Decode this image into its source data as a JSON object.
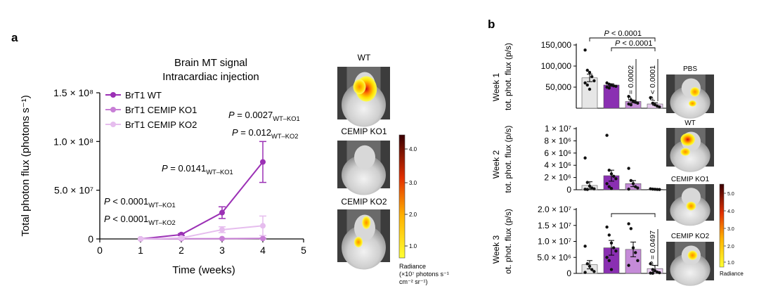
{
  "panel_a_letter": "a",
  "panel_b_letter": "b",
  "chart_data": [
    {
      "type": "line",
      "panel": "a",
      "title_lines": [
        "Brain MT signal",
        "Intracardiac injection"
      ],
      "xlabel": "Time (weeks)",
      "ylabel": "Total photon flux (photons s⁻¹)",
      "xlim": [
        0,
        5
      ],
      "ylim": [
        0,
        150000000
      ],
      "x_ticks": [
        "0",
        "1",
        "2",
        "3",
        "4",
        "5"
      ],
      "y_ticks": [
        {
          "value": 0,
          "label": "0"
        },
        {
          "value": 50000000,
          "label": "5.0 × 10⁷"
        },
        {
          "value": 100000000,
          "label": "1.0 × 10⁸"
        },
        {
          "value": 150000000,
          "label": "1.5 × 10⁸"
        }
      ],
      "legend_position": "top-left",
      "series": [
        {
          "name": "BrT1 WT",
          "color": "#9b30b5",
          "x": [
            1,
            2,
            3,
            4
          ],
          "y": [
            0,
            4500000,
            27000000,
            79000000
          ],
          "err": [
            0,
            1000000,
            6000000,
            21000000
          ]
        },
        {
          "name": "BrT1 CEMIP KO1",
          "color": "#c87fd6",
          "x": [
            1,
            2,
            3,
            4
          ],
          "y": [
            0,
            200000,
            300000,
            500000
          ],
          "err": [
            0,
            100000,
            200000,
            300000
          ]
        },
        {
          "name": "BrT1 CEMIP KO2",
          "color": "#e6bdee",
          "x": [
            1,
            2,
            3,
            4
          ],
          "y": [
            0,
            1000000,
            9500000,
            13500000
          ],
          "err": [
            0,
            500000,
            3000000,
            10000000
          ]
        }
      ],
      "annotations": [
        {
          "main": "P = 0.0027",
          "sub": "WT–KO1"
        },
        {
          "main": "P = 0.012",
          "sub": "WT–KO2"
        },
        {
          "main": "P = 0.0141",
          "sub": "WT–KO1"
        },
        {
          "main": "P < 0.0001",
          "sub": "WT–KO1"
        },
        {
          "main": "P < 0.0001",
          "sub": "WT–KO2"
        }
      ]
    },
    {
      "type": "bar",
      "panel": "b",
      "row_label": "Week 1",
      "ylabel": "tot. phot. flux (p/s)",
      "categories": [
        "PBS",
        "WT",
        "CEMIP KO1",
        "CEMIP KO2"
      ],
      "colors": [
        "#e6e6e6",
        "#8a2fb2",
        "#c58bd8",
        "#e9ccf0"
      ],
      "values": [
        72000,
        55000,
        16000,
        10000
      ],
      "err": [
        9000,
        3000,
        3000,
        3000
      ],
      "ylim": [
        0,
        150000
      ],
      "y_ticks": [
        {
          "value": 50000,
          "label": "50,000"
        },
        {
          "value": 100000,
          "label": "100,000"
        },
        {
          "value": 150000,
          "label": "150,000"
        }
      ],
      "points": [
        [
          138000,
          90000,
          85000,
          75000,
          65000,
          60000,
          55000,
          45000
        ],
        [
          60000,
          57000,
          55000,
          53000,
          52000,
          50000,
          48000
        ],
        [
          28000,
          20000,
          17000,
          14000,
          12000,
          10000,
          8000
        ],
        [
          25000,
          12000,
          8000,
          5000,
          3000
        ]
      ],
      "brackets": [
        {
          "from": 0,
          "to": 3,
          "label": "P < 0.0001",
          "orient": "horizontal"
        },
        {
          "from": 1,
          "to": 3,
          "label": "P < 0.0001",
          "orient": "horizontal"
        },
        {
          "from": 1,
          "to": 2,
          "label": "P = 0.0002",
          "orient": "vertical"
        },
        {
          "from": 1,
          "to": 3,
          "label": "P < 0.0001",
          "orient": "vertical"
        }
      ]
    },
    {
      "type": "bar",
      "panel": "b",
      "row_label": "Week 2",
      "ylabel": "tot. phot. flux (p/s)",
      "categories": [
        "PBS",
        "WT",
        "CEMIP KO1",
        "CEMIP KO2"
      ],
      "colors": [
        "#e6e6e6",
        "#8a2fb2",
        "#c58bd8",
        "#e9ccf0"
      ],
      "values": [
        700000,
        2300000,
        1000000,
        80000
      ],
      "err": [
        600000,
        900000,
        500000,
        40000
      ],
      "ylim": [
        0,
        10000000
      ],
      "y_ticks": [
        {
          "value": 0,
          "label": "0"
        },
        {
          "value": 2000000,
          "label": "2 × 10⁶"
        },
        {
          "value": 4000000,
          "label": "4 × 10⁶"
        },
        {
          "value": 6000000,
          "label": "6 × 10⁶"
        },
        {
          "value": 8000000,
          "label": "8 × 10⁶"
        },
        {
          "value": 10000000,
          "label": "1 × 10⁷"
        }
      ],
      "points": [
        [
          5200000,
          1200000,
          600000,
          300000,
          150000,
          80000,
          50000
        ],
        [
          8900000,
          3200000,
          2600000,
          2200000,
          1800000,
          1000000,
          500000,
          200000
        ],
        [
          3500000,
          1500000,
          1000000,
          500000,
          300000,
          100000
        ],
        [
          150000,
          100000,
          80000,
          50000,
          40000
        ]
      ],
      "brackets": []
    },
    {
      "type": "bar",
      "panel": "b",
      "row_label": "Week 3",
      "ylabel": "ot. phot. flux (p/s)",
      "categories": [
        "PBS",
        "WT",
        "CEMIP KO1",
        "CEMIP KO2"
      ],
      "colors": [
        "#e6e6e6",
        "#8a2fb2",
        "#c58bd8",
        "#e9ccf0"
      ],
      "values": [
        2700000,
        8000000,
        7500000,
        1500000
      ],
      "err": [
        1300000,
        2300000,
        2300000,
        1000000
      ],
      "ylim": [
        0,
        20000000
      ],
      "y_ticks": [
        {
          "value": 0,
          "label": "0"
        },
        {
          "value": 5000000,
          "label": "5.0 × 10⁶"
        },
        {
          "value": 10000000,
          "label": "1.0 × 10⁷"
        },
        {
          "value": 15000000,
          "label": "1.5 × 10⁷"
        },
        {
          "value": 20000000,
          "label": "2.0 × 10⁷"
        }
      ],
      "points": [
        [
          8500000,
          3000000,
          2200000,
          1200000,
          600000,
          300000
        ],
        [
          14500000,
          12000000,
          9500000,
          8000000,
          7000000,
          5000000,
          4000000,
          1200000
        ],
        [
          15500000,
          14000000,
          8000000,
          6500000,
          4000000,
          2500000
        ],
        [
          3000000,
          1200000,
          800000,
          400000,
          200000,
          100000,
          50000
        ]
      ],
      "brackets": [
        {
          "from": 1,
          "to": 3,
          "label": "",
          "orient": "horizontal"
        },
        {
          "from": 1,
          "to": 3,
          "label": "P = 0.0497",
          "orient": "vertical"
        }
      ]
    }
  ],
  "panel_a_images": {
    "labels": [
      "WT",
      "CEMIP KO1",
      "CEMIP KO2"
    ],
    "colorbar_ticks": [
      "4.0",
      "3.0",
      "2.0",
      "1.0"
    ],
    "colorbar_title_lines": [
      "Radiance",
      "(×10⁷  photons s⁻¹",
      "cm⁻² sr⁻¹)"
    ]
  },
  "panel_b_images": {
    "labels": [
      "PBS",
      "WT",
      "CEMIP KO1",
      "CEMIP KO2"
    ],
    "colorbar_ticks": [
      "5.0",
      "4.0",
      "3.0",
      "2.0",
      "1.0"
    ],
    "colorbar_title": "Radiance"
  }
}
